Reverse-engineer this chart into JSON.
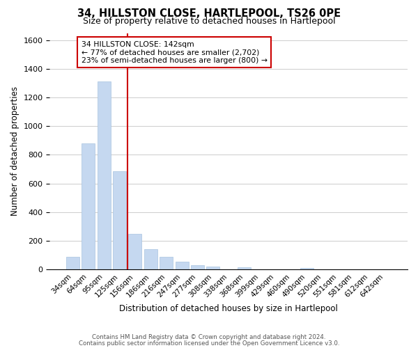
{
  "title": "34, HILLSTON CLOSE, HARTLEPOOL, TS26 0PE",
  "subtitle": "Size of property relative to detached houses in Hartlepool",
  "xlabel": "Distribution of detached houses by size in Hartlepool",
  "ylabel": "Number of detached properties",
  "bar_labels": [
    "34sqm",
    "64sqm",
    "95sqm",
    "125sqm",
    "156sqm",
    "186sqm",
    "216sqm",
    "247sqm",
    "277sqm",
    "308sqm",
    "338sqm",
    "368sqm",
    "399sqm",
    "429sqm",
    "460sqm",
    "490sqm",
    "520sqm",
    "551sqm",
    "581sqm",
    "612sqm",
    "642sqm"
  ],
  "bar_values": [
    87,
    880,
    1310,
    685,
    250,
    140,
    85,
    55,
    30,
    20,
    0,
    15,
    0,
    0,
    0,
    10,
    0,
    0,
    0,
    0,
    0
  ],
  "bar_color": "#c5d8f0",
  "bar_edge_color": "#a8c4e0",
  "red_line_x": 3.5,
  "annotation_title": "34 HILLSTON CLOSE: 142sqm",
  "annotation_line1": "← 77% of detached houses are smaller (2,702)",
  "annotation_line2": "23% of semi-detached houses are larger (800) →",
  "annotation_box_color": "#ffffff",
  "annotation_box_edge": "#cc0000",
  "ylim": [
    0,
    1650
  ],
  "yticks": [
    0,
    200,
    400,
    600,
    800,
    1000,
    1200,
    1400,
    1600
  ],
  "footer1": "Contains HM Land Registry data © Crown copyright and database right 2024.",
  "footer2": "Contains public sector information licensed under the Open Government Licence v3.0.",
  "background_color": "#ffffff",
  "grid_color": "#cccccc"
}
